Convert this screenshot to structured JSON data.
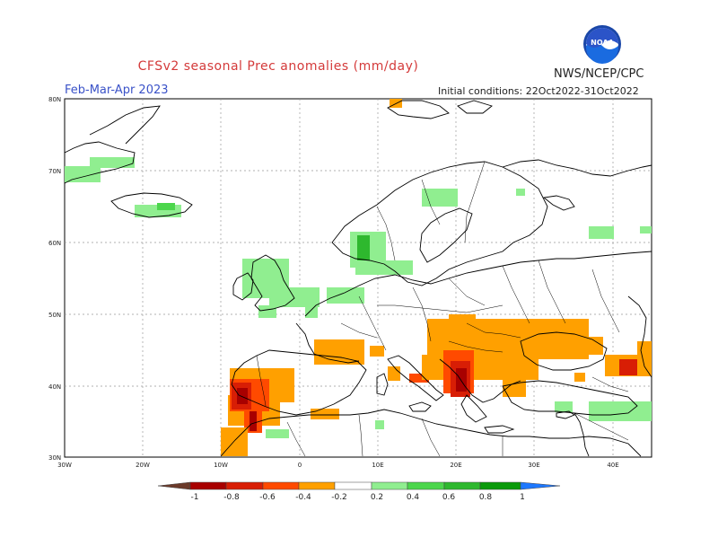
{
  "header": {
    "title": "CFSv2 seasonal Prec anomalies (mm/day)",
    "period": "Feb-Mar-Apr 2023",
    "initial_conditions": "Initial conditions: 22Oct2022-31Oct2022",
    "agency": "NWS/NCEP/CPC",
    "logo_text": "NOAA"
  },
  "map": {
    "lon_labels": [
      "30W",
      "20W",
      "10W",
      "0",
      "10E",
      "20E",
      "30E",
      "40E"
    ],
    "lat_labels": [
      "80N",
      "70N",
      "60N",
      "50N",
      "40N",
      "30N"
    ],
    "lon_range": [
      -30,
      45
    ],
    "lat_range": [
      30,
      80
    ]
  },
  "colorbar": {
    "labels": [
      "-1",
      "-0.8",
      "-0.6",
      "-0.4",
      "-0.2",
      "0.2",
      "0.4",
      "0.6",
      "0.8",
      "1"
    ],
    "colors": [
      "#6b3a2a",
      "#a80000",
      "#d81e05",
      "#ff4a00",
      "#ffa000",
      "#ffffff",
      "#90ee90",
      "#4cd64c",
      "#2eb82e",
      "#0a9a0a",
      "#1e78ff"
    ]
  },
  "chart_data": {
    "type": "heatmap",
    "title": "CFSv2 seasonal Prec anomalies (mm/day)",
    "units": "mm/day",
    "levels": [
      -1,
      -0.8,
      -0.6,
      -0.4,
      -0.2,
      0.2,
      0.4,
      0.6,
      0.8,
      1
    ],
    "regions": [
      {
        "name": "Southern Portugal",
        "anomaly": "-0.8 to -1"
      },
      {
        "name": "Southwest Iberia",
        "anomaly": "-0.4 to -0.8"
      },
      {
        "name": "Northern Spain / Pyrenees",
        "anomaly": "-0.2 to -0.4"
      },
      {
        "name": "Balkans / Carpathians",
        "anomaly": "-0.2 to -0.4"
      },
      {
        "name": "Western Greece / Albania",
        "anomaly": "-0.6 to -0.8"
      },
      {
        "name": "Georgia / Caucasus",
        "anomaly": "-0.6 to -0.8"
      },
      {
        "name": "British Isles",
        "anomaly": "0.2 to 0.4"
      },
      {
        "name": "Western Norway",
        "anomaly": "0.2 to 0.6"
      },
      {
        "name": "Iceland / Greenland coast",
        "anomaly": "0.2 to 0.4"
      },
      {
        "name": "Eastern Mediterranean / Levant",
        "anomaly": "0.2 to 0.4"
      }
    ]
  }
}
